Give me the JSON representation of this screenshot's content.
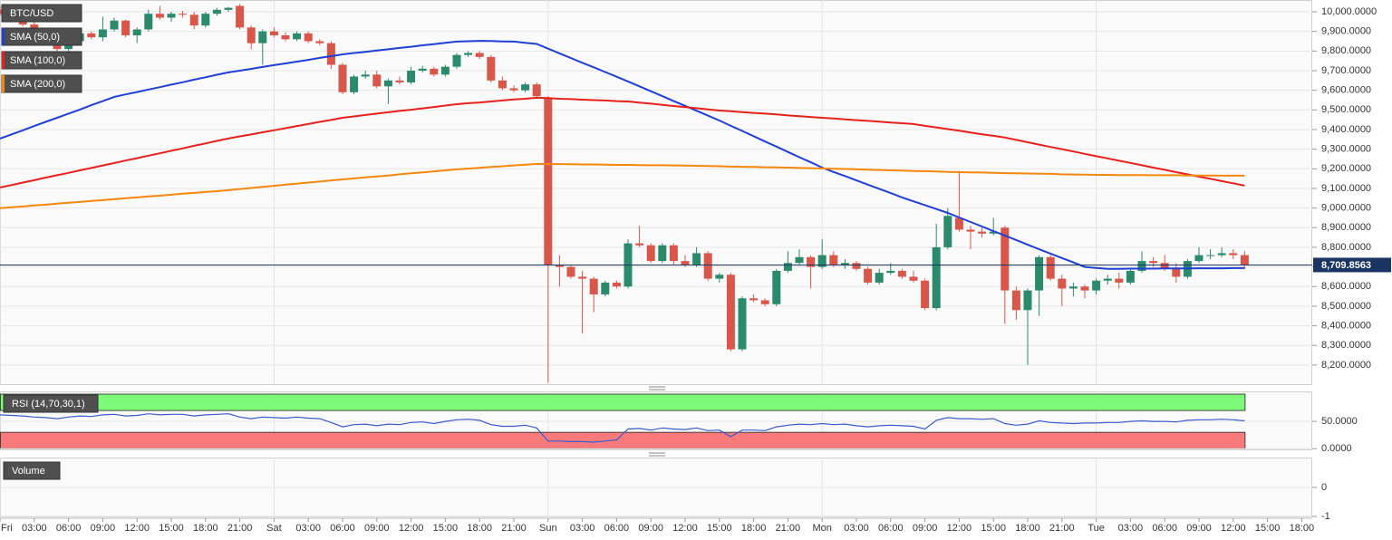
{
  "chart_data": [
    {
      "type": "candlestick",
      "title": "BTC/USD",
      "categories": [
        "Fri",
        null,
        null,
        "03:00",
        null,
        null,
        "06:00",
        null,
        null,
        "09:00",
        null,
        null,
        "12:00",
        null,
        null,
        "15:00",
        null,
        null,
        "18:00",
        null,
        null,
        "21:00",
        null,
        null,
        "Sat",
        null,
        null,
        "03:00",
        null,
        null,
        "06:00",
        null,
        null,
        "09:00",
        null,
        null,
        "12:00",
        null,
        null,
        "15:00",
        null,
        null,
        "18:00",
        null,
        null,
        "21:00",
        null,
        null,
        "Sun",
        null,
        null,
        "03:00",
        null,
        null,
        "06:00",
        null,
        null,
        "09:00",
        null,
        null,
        "12:00",
        null,
        null,
        "15:00",
        null,
        null,
        "18:00",
        null,
        null,
        "21:00",
        null,
        null,
        "Mon",
        null,
        null,
        "03:00",
        null,
        null,
        "06:00",
        null,
        null,
        "09:00",
        null,
        null,
        "12:00",
        null,
        null,
        "15:00",
        null,
        null,
        "18:00",
        null,
        null,
        "21:00",
        null,
        null,
        "Tue",
        null,
        null,
        "03:00",
        null,
        null,
        "06:00",
        null,
        null,
        "09:00",
        null,
        null,
        "12:00",
        null,
        null,
        "15:00",
        null,
        null,
        "18:00"
      ],
      "open": [
        10010,
        9990,
        9960,
        9935,
        9900,
        9880,
        9810,
        9850,
        9890,
        9870,
        9910,
        9955,
        9880,
        9910,
        9990,
        9970,
        9990,
        9985,
        9930,
        9990,
        10010,
        10030,
        9920,
        9840,
        9900,
        9880,
        9860,
        9890,
        9850,
        9840,
        9730,
        9590,
        9670,
        9680,
        9620,
        9650,
        9640,
        9700,
        9710,
        9680,
        9720,
        9780,
        9790,
        9770,
        9650,
        9610,
        9600,
        9630,
        9560,
        8710,
        8700,
        8650,
        8640,
        8560,
        8620,
        8600,
        8820,
        8810,
        8730,
        8810,
        8730,
        8710,
        8770,
        8640,
        8660,
        8280,
        8540,
        8530,
        8510,
        8680,
        8720,
        8750,
        8700,
        8760,
        8710,
        8720,
        8690,
        8620,
        8670,
        8680,
        8650,
        8630,
        8490,
        8800,
        8950,
        8890,
        8880,
        8870,
        8900,
        8580,
        8480,
        8580,
        8750,
        8640,
        8590,
        8600,
        8580,
        8630,
        8640,
        8620,
        8680,
        8730,
        8720,
        8690,
        8650,
        8730,
        8760,
        8760,
        8770,
        8760,
        null,
        null,
        null,
        null,
        null
      ],
      "high": [
        10030,
        10000,
        9975,
        9950,
        9915,
        9895,
        9860,
        9900,
        9900,
        9975,
        9970,
        9960,
        9920,
        10010,
        10030,
        10000,
        10005,
        10000,
        10000,
        10020,
        10025,
        10040,
        9930,
        9910,
        9920,
        9895,
        9900,
        9900,
        9860,
        9850,
        9740,
        9680,
        9700,
        9700,
        9660,
        9670,
        9720,
        9725,
        9720,
        9730,
        9790,
        9800,
        9800,
        9780,
        9670,
        9625,
        9640,
        9640,
        9570,
        8760,
        8710,
        8680,
        8650,
        8630,
        8630,
        8840,
        8910,
        8820,
        8820,
        8820,
        8760,
        8800,
        8780,
        8670,
        8670,
        8550,
        8560,
        8540,
        8690,
        8780,
        8790,
        8760,
        8840,
        8780,
        8740,
        8730,
        8700,
        8690,
        8720,
        8690,
        8680,
        8640,
        8920,
        9000,
        9190,
        8910,
        8900,
        8950,
        8910,
        8600,
        8590,
        8760,
        8760,
        8660,
        8620,
        8610,
        8640,
        8660,
        8670,
        8690,
        8780,
        8750,
        8760,
        8720,
        8740,
        8800,
        8790,
        8800,
        8790,
        8780,
        null,
        null,
        null,
        null,
        null
      ],
      "low": [
        9980,
        9950,
        9925,
        9890,
        9870,
        9780,
        9800,
        9840,
        9860,
        9850,
        9900,
        9870,
        9840,
        9900,
        9960,
        9950,
        9970,
        9910,
        9920,
        9980,
        10000,
        9910,
        9810,
        9730,
        9870,
        9850,
        9850,
        9840,
        9830,
        9710,
        9580,
        9580,
        9660,
        9610,
        9530,
        9630,
        9630,
        9690,
        9670,
        9670,
        9710,
        9770,
        9760,
        9640,
        9600,
        9590,
        9590,
        9560,
        8110,
        8600,
        8640,
        8360,
        8470,
        8550,
        8590,
        8590,
        8800,
        8720,
        8720,
        8710,
        8700,
        8700,
        8630,
        8620,
        8270,
        8270,
        8520,
        8500,
        8500,
        8670,
        8710,
        8590,
        8690,
        8700,
        8690,
        8680,
        8610,
        8610,
        8660,
        8640,
        8620,
        8480,
        8480,
        8790,
        8880,
        8790,
        8850,
        8860,
        8410,
        8430,
        8200,
        8450,
        8630,
        8500,
        8550,
        8540,
        8560,
        8610,
        8590,
        8610,
        8670,
        8700,
        8680,
        8620,
        8640,
        8720,
        8740,
        8750,
        8740,
        8690,
        null,
        null,
        null,
        null,
        null
      ],
      "close": [
        9990,
        9960,
        9935,
        9900,
        9880,
        9810,
        9850,
        9890,
        9870,
        9910,
        9955,
        9880,
        9910,
        9990,
        9970,
        9990,
        9985,
        9930,
        9990,
        10010,
        10020,
        9920,
        9840,
        9900,
        9880,
        9860,
        9890,
        9850,
        9840,
        9730,
        9590,
        9670,
        9680,
        9620,
        9650,
        9640,
        9700,
        9710,
        9680,
        9720,
        9780,
        9790,
        9770,
        9650,
        9610,
        9600,
        9630,
        9570,
        8710,
        8700,
        8650,
        8640,
        8560,
        8620,
        8600,
        8820,
        8810,
        8730,
        8810,
        8730,
        8710,
        8770,
        8640,
        8660,
        8280,
        8540,
        8530,
        8510,
        8680,
        8720,
        8750,
        8700,
        8760,
        8710,
        8720,
        8690,
        8620,
        8670,
        8680,
        8650,
        8630,
        8490,
        8800,
        8960,
        8890,
        8880,
        8870,
        8880,
        8580,
        8480,
        8580,
        8750,
        8640,
        8590,
        8600,
        8580,
        8630,
        8640,
        8620,
        8680,
        8730,
        8720,
        8690,
        8650,
        8730,
        8760,
        8760,
        8770,
        8760,
        8709.8563,
        null,
        null,
        null,
        null,
        null
      ],
      "up_color": "#2b8a6b",
      "down_color": "#d9574a",
      "series": [
        {
          "name": "SMA (50,0)",
          "color": "#1f3fd6",
          "values": [
            9354,
            9375,
            9396,
            9418,
            9439,
            9460,
            9481,
            9502,
            9524,
            9545,
            9566,
            9579,
            9591,
            9604,
            9616,
            9629,
            9641,
            9654,
            9666,
            9679,
            9691,
            9700,
            9709,
            9719,
            9728,
            9737,
            9746,
            9755,
            9765,
            9774,
            9783,
            9790,
            9796,
            9803,
            9809,
            9816,
            9822,
            9829,
            9835,
            9842,
            9848,
            9850,
            9852,
            9851,
            9849,
            9848,
            9842,
            9836,
            9812,
            9788,
            9764,
            9740,
            9717,
            9693,
            9669,
            9645,
            9620,
            9595,
            9570,
            9545,
            9521,
            9496,
            9471,
            9446,
            9419,
            9393,
            9366,
            9339,
            9313,
            9286,
            9259,
            9233,
            9206,
            9184,
            9163,
            9141,
            9119,
            9098,
            9076,
            9054,
            9034,
            9015,
            8995,
            8975,
            8952,
            8929,
            8906,
            8883,
            8860,
            8837,
            8813,
            8790,
            8768,
            8745,
            8723,
            8700,
            8695,
            8690,
            8690,
            8691,
            8691,
            8691,
            8692,
            8692,
            8692,
            8693,
            8693,
            8693,
            8694,
            8694,
            null,
            null,
            null,
            null,
            null
          ]
        },
        {
          "name": "SMA (100,0)",
          "color": "#e8201c",
          "values": [
            9105,
            9117,
            9130,
            9142,
            9155,
            9167,
            9179,
            9192,
            9204,
            9217,
            9229,
            9242,
            9254,
            9267,
            9279,
            9292,
            9304,
            9317,
            9329,
            9342,
            9354,
            9365,
            9375,
            9386,
            9396,
            9407,
            9418,
            9428,
            9439,
            9449,
            9460,
            9467,
            9474,
            9481,
            9488,
            9495,
            9501,
            9508,
            9515,
            9522,
            9529,
            9534,
            9538,
            9543,
            9548,
            9553,
            9557,
            9562,
            9560,
            9557,
            9555,
            9552,
            9550,
            9548,
            9545,
            9543,
            9537,
            9532,
            9526,
            9520,
            9514,
            9509,
            9503,
            9497,
            9493,
            9489,
            9485,
            9481,
            9477,
            9472,
            9468,
            9464,
            9460,
            9456,
            9452,
            9448,
            9444,
            9440,
            9436,
            9432,
            9428,
            9419,
            9411,
            9402,
            9394,
            9385,
            9376,
            9368,
            9359,
            9347,
            9335,
            9323,
            9311,
            9300,
            9288,
            9276,
            9264,
            9253,
            9241,
            9230,
            9218,
            9206,
            9195,
            9183,
            9172,
            9160,
            9149,
            9137,
            9126,
            9114,
            null,
            null,
            null,
            null,
            null
          ]
        },
        {
          "name": "SMA (200,0)",
          "color": "#f5870f",
          "values": [
            8999,
            9004,
            9008,
            9013,
            9017,
            9022,
            9027,
            9031,
            9036,
            9040,
            9045,
            9050,
            9054,
            9059,
            9063,
            9068,
            9073,
            9077,
            9082,
            9086,
            9091,
            9097,
            9102,
            9108,
            9113,
            9119,
            9124,
            9130,
            9135,
            9141,
            9146,
            9151,
            9156,
            9161,
            9166,
            9172,
            9177,
            9182,
            9187,
            9192,
            9197,
            9201,
            9205,
            9209,
            9213,
            9217,
            9221,
            9225,
            9224,
            9224,
            9223,
            9222,
            9222,
            9221,
            9220,
            9220,
            9219,
            9218,
            9218,
            9217,
            9216,
            9215,
            9214,
            9213,
            9211,
            9210,
            9209,
            9208,
            9207,
            9206,
            9204,
            9203,
            9202,
            9200,
            9199,
            9197,
            9196,
            9194,
            9192,
            9191,
            9189,
            9188,
            9186,
            9184,
            9183,
            9182,
            9181,
            9179,
            9178,
            9177,
            9176,
            9175,
            9174,
            9172,
            9171,
            9170,
            9169,
            9169,
            9168,
            9168,
            9168,
            9167,
            9167,
            9167,
            9166,
            9166,
            9166,
            9165,
            9165,
            9165,
            null,
            null,
            null,
            null,
            null
          ]
        }
      ],
      "ylim": [
        8098,
        10060
      ],
      "yticks": [
        {
          "value": 10000,
          "label": "10,000.0000"
        },
        {
          "value": 9900,
          "label": "9,900.0000"
        },
        {
          "value": 9800,
          "label": "9,800.0000"
        },
        {
          "value": 9700,
          "label": "9,700.0000"
        },
        {
          "value": 9600,
          "label": "9,600.0000"
        },
        {
          "value": 9500,
          "label": "9,500.0000"
        },
        {
          "value": 9400,
          "label": "9,400.0000"
        },
        {
          "value": 9300,
          "label": "9,300.0000"
        },
        {
          "value": 9200,
          "label": "9,200.0000"
        },
        {
          "value": 9100,
          "label": "9,100.0000"
        },
        {
          "value": 9000,
          "label": "9,000.0000"
        },
        {
          "value": 8900,
          "label": "8,900.0000"
        },
        {
          "value": 8800,
          "label": "8,800.0000"
        },
        {
          "value": 8700,
          "label": "8,700.0000"
        },
        {
          "value": 8600,
          "label": "8,600.0000"
        },
        {
          "value": 8500,
          "label": "8,500.0000"
        },
        {
          "value": 8400,
          "label": "8,400.0000"
        },
        {
          "value": 8300,
          "label": "8,300.0000"
        },
        {
          "value": 8200,
          "label": "8,200.0000"
        }
      ],
      "last_price": {
        "value": 8709.8563,
        "label": "8,709.8563"
      },
      "grid": true
    },
    {
      "type": "line",
      "series": [
        {
          "name": "RSI (14,70,30,1)",
          "color": "#3a5bd0",
          "values": [
            62,
            61,
            60,
            58,
            57,
            55,
            58,
            60,
            59,
            62,
            63,
            60,
            61,
            64,
            62,
            63,
            63,
            60,
            62,
            63,
            64,
            58,
            55,
            58,
            57,
            56,
            58,
            56,
            55,
            48,
            40,
            44,
            45,
            42,
            45,
            44,
            48,
            49,
            46,
            50,
            53,
            54,
            52,
            44,
            41,
            41,
            43,
            38,
            14,
            14,
            13,
            13,
            12,
            14,
            16,
            36,
            37,
            34,
            38,
            36,
            35,
            38,
            33,
            34,
            22,
            34,
            34,
            33,
            40,
            43,
            45,
            44,
            46,
            44,
            45,
            42,
            40,
            42,
            43,
            42,
            41,
            36,
            52,
            57,
            55,
            55,
            54,
            55,
            46,
            43,
            45,
            51,
            48,
            47,
            46,
            47,
            47,
            48,
            48,
            50,
            51,
            50,
            50,
            49,
            52,
            53,
            53,
            54,
            53,
            51,
            null,
            null,
            null,
            null,
            null
          ]
        }
      ],
      "bands": [
        {
          "from": 70,
          "to": 100,
          "color": "#7dfb78"
        },
        {
          "from": 0,
          "to": 30,
          "color": "#f97a7a"
        }
      ],
      "ylim": [
        -3,
        105
      ],
      "yticks": [
        {
          "value": 50,
          "label": "50.0000"
        },
        {
          "value": 0,
          "label": "0.0000"
        }
      ],
      "grid": true
    },
    {
      "type": "bar",
      "title": "Volume",
      "ylim": [
        -1.03,
        1.03
      ],
      "yticks": [
        0,
        -1
      ],
      "grid": true
    }
  ]
}
